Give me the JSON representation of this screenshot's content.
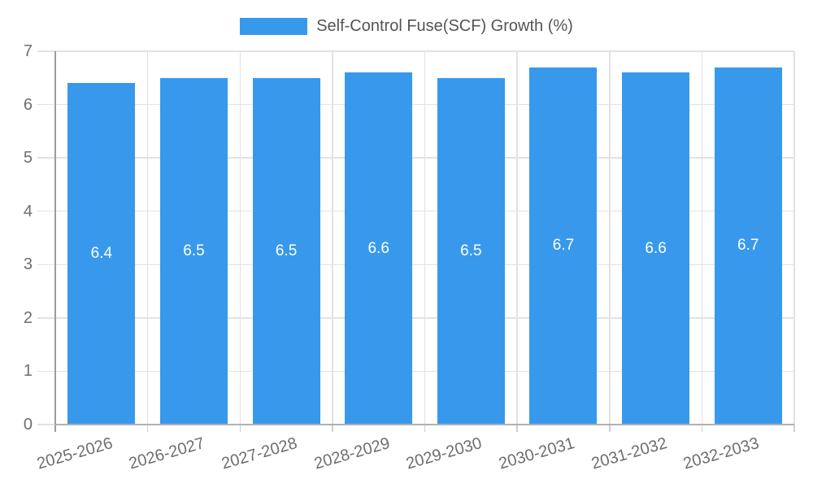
{
  "chart_data": {
    "type": "bar",
    "title": "Self-Control Fuse(SCF) Growth (%)",
    "categories": [
      "2025-2026",
      "2026-2027",
      "2027-2028",
      "2028-2029",
      "2029-2030",
      "2030-2031",
      "2031-2032",
      "2032-2033"
    ],
    "series": [
      {
        "name": "Self-Control Fuse(SCF) Growth (%)",
        "values": [
          6.4,
          6.5,
          6.5,
          6.6,
          6.5,
          6.7,
          6.6,
          6.7
        ]
      }
    ],
    "value_labels": [
      "6.4",
      "6.5",
      "6.5",
      "6.6",
      "6.5",
      "6.7",
      "6.6",
      "6.7"
    ],
    "xlabel": "",
    "ylabel": "",
    "ylim": [
      0,
      7
    ],
    "yticks": [
      0,
      1,
      2,
      3,
      4,
      5,
      6,
      7
    ],
    "grid": true,
    "legend_position": "top-center",
    "colors": {
      "bar": "#3899ec",
      "value_label": "#ffffff",
      "gridline": "#e2e2e2",
      "y_axis_line": "#9b9b9b",
      "x_baseline": "#b0b0b0",
      "axis_text": "#6e6e6e",
      "legend_text": "#545454",
      "background": "#ffffff"
    }
  }
}
